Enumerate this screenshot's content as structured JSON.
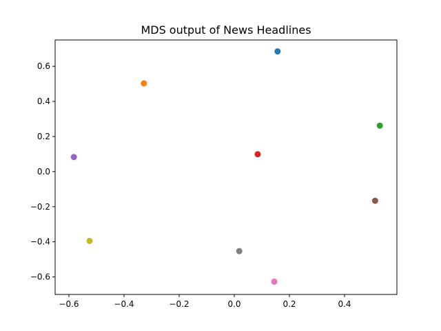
{
  "chart_data": {
    "type": "scatter",
    "title": "MDS output of News Headlines",
    "xlabel": "",
    "ylabel": "",
    "xlim": [
      -0.65,
      0.59
    ],
    "ylim": [
      -0.7,
      0.75
    ],
    "x_ticks": [
      -0.6,
      -0.4,
      -0.2,
      0.0,
      0.2,
      0.4
    ],
    "y_ticks": [
      -0.6,
      -0.4,
      -0.2,
      0.0,
      0.2,
      0.4,
      0.6
    ],
    "x_tick_labels": [
      "−0.6",
      "−0.4",
      "−0.2",
      "0.0",
      "0.2",
      "0.4"
    ],
    "y_tick_labels": [
      "−0.6",
      "−0.4",
      "−0.2",
      "0.0",
      "0.2",
      "0.4",
      "0.6"
    ],
    "grid": false,
    "points": [
      {
        "x": 0.157,
        "y": 0.685,
        "color": "#1f77b4"
      },
      {
        "x": -0.328,
        "y": 0.503,
        "color": "#ff7f0e"
      },
      {
        "x": 0.528,
        "y": 0.262,
        "color": "#2ca02c"
      },
      {
        "x": 0.085,
        "y": 0.099,
        "color": "#d62728"
      },
      {
        "x": -0.582,
        "y": 0.083,
        "color": "#9467bd"
      },
      {
        "x": 0.511,
        "y": -0.166,
        "color": "#8c564b"
      },
      {
        "x": 0.145,
        "y": -0.627,
        "color": "#e377c2"
      },
      {
        "x": 0.018,
        "y": -0.453,
        "color": "#7f7f7f"
      },
      {
        "x": -0.525,
        "y": -0.395,
        "color": "#bcbd22"
      }
    ]
  }
}
